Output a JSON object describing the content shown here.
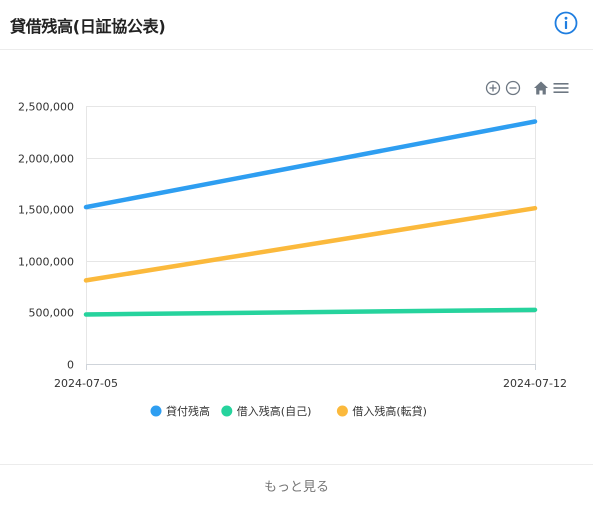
{
  "header": {
    "title": "貸借残高(日証協公表)"
  },
  "footer": {
    "more_label": "もっと見る"
  },
  "colors": {
    "lending": "#2e9ef1",
    "borrow_self": "#26d39d",
    "borrow_transfer": "#fbb93c",
    "info": "#1f7ee0",
    "toolbar": "#6d7782"
  },
  "chart_data": {
    "type": "line",
    "x": [
      "2024-07-05",
      "2024-07-12"
    ],
    "x_tick_labels": [
      "2024-07-05",
      "2024-07-12"
    ],
    "ylim": [
      0,
      2500000
    ],
    "y_ticks": [
      0,
      500000,
      1000000,
      1500000,
      2000000,
      2500000
    ],
    "y_tick_labels": [
      "0",
      "500,000",
      "1,000,000",
      "1,500,000",
      "2,000,000",
      "2,500,000"
    ],
    "grid": true,
    "legend_position": "bottom",
    "series": [
      {
        "name": "貸付残高",
        "color": "#2e9ef1",
        "values": [
          1520000,
          2350000
        ]
      },
      {
        "name": "借入残高(自己)",
        "color": "#26d39d",
        "values": [
          480000,
          525000
        ]
      },
      {
        "name": "借入残高(転貸)",
        "color": "#fbb93c",
        "values": [
          810000,
          1510000
        ]
      }
    ],
    "toolbar": [
      "zoom-in-icon",
      "zoom-out-icon",
      "home-icon",
      "menu-icon"
    ]
  }
}
